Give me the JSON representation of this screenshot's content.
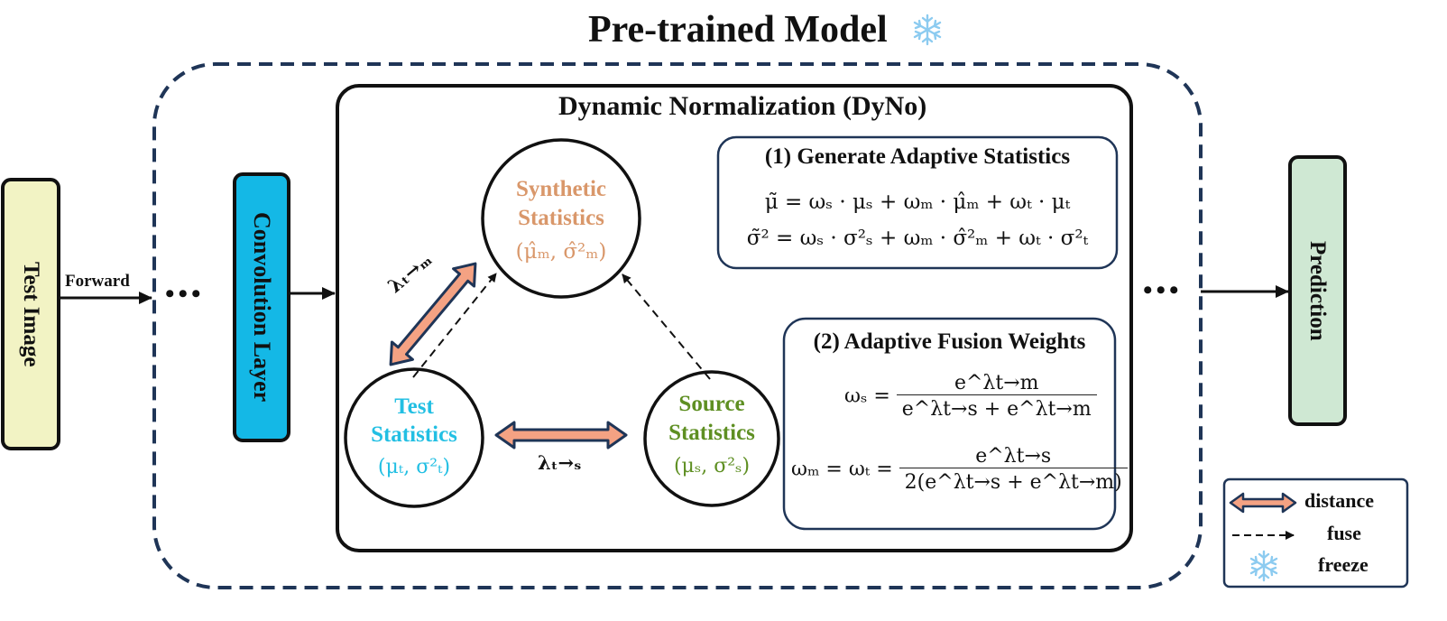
{
  "title": "Pre-trained Model",
  "input": {
    "label": "Test  Image",
    "forward_label": "Forward"
  },
  "ellipsis": "•••",
  "conv_layer": {
    "label": "Convolution  Layer"
  },
  "dyno": {
    "title": "Dynamic Normalization (DyNo)",
    "synthetic": {
      "name_line1": "Synthetic",
      "name_line2": "Statistics",
      "params": "(μ̂ₘ, σ̂²ₘ)"
    },
    "test": {
      "name_line1": "Test",
      "name_line2": "Statistics",
      "params": "(μₜ, σ²ₜ)"
    },
    "source": {
      "name_line1": "Source",
      "name_line2": "Statistics",
      "params": "(μₛ, σ²ₛ)"
    },
    "lambda_tm": "λₜ→ₘ",
    "lambda_ts": "λₜ→ₛ",
    "box1": {
      "title": "(1) Generate Adaptive Statistics",
      "eq1": "μ̃ = ωₛ · μₛ + ωₘ · μ̂ₘ + ωₜ · μₜ",
      "eq2": "σ̃² = ωₛ · σ²ₛ + ωₘ · σ̂²ₘ + ωₜ · σ²ₜ"
    },
    "box2": {
      "title": "(2) Adaptive Fusion Weights",
      "ws_lhs": "ωₛ =",
      "ws_num": "e^λt→m",
      "ws_den": "e^λt→s + e^λt→m",
      "wm_lhs": "ωₘ = ωₜ =",
      "wm_num": "e^λt→s",
      "wm_den": "2(e^λt→s + e^λt→m)"
    }
  },
  "output": {
    "label": "Prediction"
  },
  "legend": {
    "distance": "distance",
    "fuse": "fuse",
    "freeze": "freeze"
  },
  "colors": {
    "dashed_border": "#1f3557",
    "input_fill": "#f2f3c4",
    "conv_fill": "#14b8e6",
    "output_fill": "#cfe8d3",
    "synthetic_text": "#d9976a",
    "test_text": "#22bfe3",
    "source_text": "#5e8f22",
    "distance_arrow": "#f4a283",
    "snowflake": "#8ccbf0",
    "box_border": "#1f3557"
  }
}
